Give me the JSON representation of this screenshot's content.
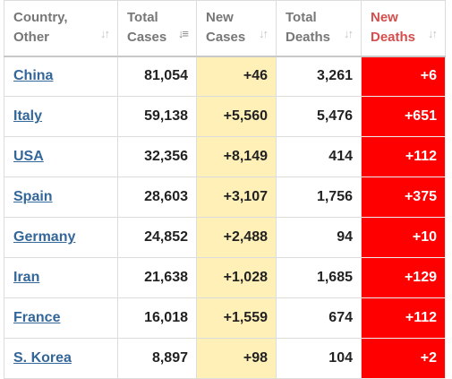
{
  "headers": [
    {
      "label": "Country,\nOther"
    },
    {
      "label": "Total\nCases"
    },
    {
      "label": "New\nCases"
    },
    {
      "label": "Total\nDeaths"
    },
    {
      "label": "New\nDeaths"
    }
  ],
  "colors": {
    "new_cases_bg": "#fff0b8",
    "new_deaths_bg": "#ff0000",
    "country_link": "#336699",
    "new_deaths_header": "#d54e4e"
  },
  "rows": [
    {
      "country": "China",
      "total_cases": "81,054",
      "new_cases": "+46",
      "total_deaths": "3,261",
      "new_deaths": "+6"
    },
    {
      "country": "Italy",
      "total_cases": "59,138",
      "new_cases": "+5,560",
      "total_deaths": "5,476",
      "new_deaths": "+651"
    },
    {
      "country": "USA",
      "total_cases": "32,356",
      "new_cases": "+8,149",
      "total_deaths": "414",
      "new_deaths": "+112"
    },
    {
      "country": "Spain",
      "total_cases": "28,603",
      "new_cases": "+3,107",
      "total_deaths": "1,756",
      "new_deaths": "+375"
    },
    {
      "country": "Germany",
      "total_cases": "24,852",
      "new_cases": "+2,488",
      "total_deaths": "94",
      "new_deaths": "+10"
    },
    {
      "country": "Iran",
      "total_cases": "21,638",
      "new_cases": "+1,028",
      "total_deaths": "1,685",
      "new_deaths": "+129"
    },
    {
      "country": "France",
      "total_cases": "16,018",
      "new_cases": "+1,559",
      "total_deaths": "674",
      "new_deaths": "+112"
    },
    {
      "country": "S. Korea",
      "total_cases": "8,897",
      "new_cases": "+98",
      "total_deaths": "104",
      "new_deaths": "+2"
    }
  ]
}
